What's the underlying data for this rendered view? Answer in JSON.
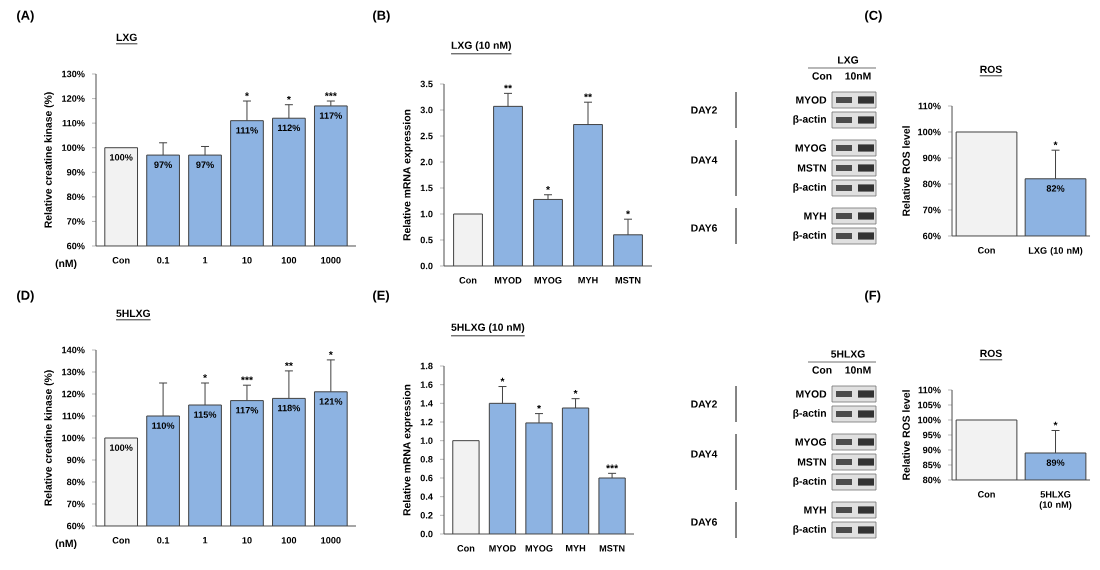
{
  "chart_data": [
    {
      "type": "bar",
      "title": "LXG",
      "ylabel": "Relative creatine kinase (%)",
      "xlabel": "(nM)",
      "categories": [
        "Con",
        "0.1",
        "1",
        "10",
        "100",
        "1000"
      ],
      "values": [
        100,
        97,
        97,
        111,
        112,
        117
      ],
      "value_labels": [
        "100%",
        "97%",
        "97%",
        "111%",
        "112%",
        "117%"
      ],
      "colors": [
        "#f2f2f2",
        "#8db3e2",
        "#8db3e2",
        "#8db3e2",
        "#8db3e2",
        "#8db3e2"
      ],
      "errors": [
        null,
        [
          97,
          102
        ],
        [
          97,
          100.5
        ],
        [
          111,
          119
        ],
        [
          112,
          117.5
        ],
        [
          117,
          119
        ]
      ],
      "ylim": [
        60,
        130
      ],
      "yticks": [
        {
          "value": 60,
          "label": "60%"
        },
        {
          "value": 70,
          "label": "70%"
        },
        {
          "value": 80,
          "label": "80%"
        },
        {
          "value": 90,
          "label": "90%"
        },
        {
          "value": 100,
          "label": "100%"
        },
        {
          "value": 110,
          "label": "110%"
        },
        {
          "value": 120,
          "label": "120%"
        },
        {
          "value": 130,
          "label": "130%"
        }
      ],
      "annotations": [
        "(A)",
        {
          "text": "*",
          "x": "10",
          "y": 119
        },
        {
          "text": "*",
          "x": "100",
          "y": 117.5
        },
        {
          "text": "***",
          "x": "1000",
          "y": 119
        }
      ]
    },
    {
      "type": "bar",
      "title": "LXG (10 nM)",
      "ylabel": "Relative mRNA expression",
      "categories": [
        "Con",
        "MYOD",
        "MYOG",
        "MYH",
        "MSTN"
      ],
      "values": [
        1.0,
        3.07,
        1.28,
        2.72,
        0.6
      ],
      "colors": [
        "#f2f2f2",
        "#8db3e2",
        "#8db3e2",
        "#8db3e2",
        "#8db3e2"
      ],
      "errors": [
        null,
        [
          3.07,
          3.32
        ],
        [
          1.28,
          1.37
        ],
        [
          2.72,
          3.15
        ],
        [
          0.6,
          0.9
        ]
      ],
      "ylim": [
        0,
        3.5
      ],
      "yticks": [
        {
          "value": 0,
          "label": "0.0"
        },
        {
          "value": 0.5,
          "label": "0.5"
        },
        {
          "value": 1,
          "label": "1.0"
        },
        {
          "value": 1.5,
          "label": "1.5"
        },
        {
          "value": 2,
          "label": "2.0"
        },
        {
          "value": 2.5,
          "label": "2.5"
        },
        {
          "value": 3,
          "label": "3.0"
        },
        {
          "value": 3.5,
          "label": "3.5"
        }
      ],
      "annotations": [
        "(B)",
        {
          "text": "**",
          "x": "MYOD",
          "y": 3.32
        },
        {
          "text": "*",
          "x": "MYOG",
          "y": 1.37
        },
        {
          "text": "**",
          "x": "MYH",
          "y": 3.15
        },
        {
          "text": "*",
          "x": "MSTN",
          "y": 0.9
        }
      ]
    },
    {
      "type": "other",
      "title": "LXG",
      "annotations": [
        "Con",
        "10nM",
        "DAY2",
        "DAY4",
        "DAY6",
        "MYOD",
        "β-actin",
        "MYOG",
        "MSTN",
        "β-actin",
        "MYH",
        "β-actin"
      ]
    },
    {
      "type": "bar",
      "title": "ROS",
      "ylabel": "Relative ROS level",
      "categories": [
        "Con",
        "LXG (10 nM)"
      ],
      "values": [
        100,
        82
      ],
      "value_labels": [
        null,
        "82%"
      ],
      "colors": [
        "#f2f2f2",
        "#8db3e2"
      ],
      "errors": [
        null,
        [
          82,
          93
        ]
      ],
      "ylim": [
        60,
        110
      ],
      "yticks": [
        {
          "value": 60,
          "label": "60%"
        },
        {
          "value": 70,
          "label": "70%"
        },
        {
          "value": 80,
          "label": "80%"
        },
        {
          "value": 90,
          "label": "90%"
        },
        {
          "value": 100,
          "label": "100%"
        },
        {
          "value": 110,
          "label": "110%"
        }
      ],
      "annotations": [
        "(C)",
        {
          "text": "*",
          "x": "LXG (10 nM)",
          "y": 93
        }
      ]
    },
    {
      "type": "bar",
      "title": "5HLXG",
      "ylabel": "Relative creatine kinase (%)",
      "xlabel": "(nM)",
      "categories": [
        "Con",
        "0.1",
        "1",
        "10",
        "100",
        "1000"
      ],
      "values": [
        100,
        110,
        115,
        117,
        118,
        121
      ],
      "value_labels": [
        "100%",
        "110%",
        "115%",
        "117%",
        "118%",
        "121%"
      ],
      "colors": [
        "#f2f2f2",
        "#8db3e2",
        "#8db3e2",
        "#8db3e2",
        "#8db3e2",
        "#8db3e2"
      ],
      "errors": [
        null,
        [
          110,
          125
        ],
        [
          115,
          125
        ],
        [
          117,
          124
        ],
        [
          118,
          130.5
        ],
        [
          121,
          135.5
        ]
      ],
      "ylim": [
        60,
        140
      ],
      "yticks": [
        {
          "value": 60,
          "label": "60%"
        },
        {
          "value": 70,
          "label": "70%"
        },
        {
          "value": 80,
          "label": "80%"
        },
        {
          "value": 90,
          "label": "90%"
        },
        {
          "value": 100,
          "label": "100%"
        },
        {
          "value": 110,
          "label": "110%"
        },
        {
          "value": 120,
          "label": "120%"
        },
        {
          "value": 130,
          "label": "130%"
        },
        {
          "value": 140,
          "label": "140%"
        }
      ],
      "annotations": [
        "(D)",
        {
          "text": "*",
          "x": "1",
          "y": 125
        },
        {
          "text": "***",
          "x": "10",
          "y": 124
        },
        {
          "text": "**",
          "x": "100",
          "y": 130.5
        },
        {
          "text": "*",
          "x": "1000",
          "y": 135.5
        }
      ]
    },
    {
      "type": "bar",
      "title": "5HLXG (10 nM)",
      "ylabel": "Relative mRNA expression",
      "categories": [
        "Con",
        "MYOD",
        "MYOG",
        "MYH",
        "MSTN"
      ],
      "values": [
        1.0,
        1.4,
        1.19,
        1.35,
        0.6
      ],
      "colors": [
        "#f2f2f2",
        "#8db3e2",
        "#8db3e2",
        "#8db3e2",
        "#8db3e2"
      ],
      "errors": [
        null,
        [
          1.4,
          1.58
        ],
        [
          1.19,
          1.29
        ],
        [
          1.35,
          1.45
        ],
        [
          0.6,
          0.65
        ]
      ],
      "ylim": [
        0,
        1.8
      ],
      "yticks": [
        {
          "value": 0,
          "label": "0.0"
        },
        {
          "value": 0.2,
          "label": "0.2"
        },
        {
          "value": 0.4,
          "label": "0.4"
        },
        {
          "value": 0.6,
          "label": "0.6"
        },
        {
          "value": 0.8,
          "label": "0.8"
        },
        {
          "value": 1,
          "label": "1.0"
        },
        {
          "value": 1.2,
          "label": "1.2"
        },
        {
          "value": 1.4,
          "label": "1.4"
        },
        {
          "value": 1.6,
          "label": "1.6"
        },
        {
          "value": 1.8,
          "label": "1.8"
        }
      ],
      "annotations": [
        "(E)",
        {
          "text": "*",
          "x": "MYOD",
          "y": 1.58
        },
        {
          "text": "*",
          "x": "MYOG",
          "y": 1.29
        },
        {
          "text": "*",
          "x": "MYH",
          "y": 1.45
        },
        {
          "text": "***",
          "x": "MSTN",
          "y": 0.65
        }
      ]
    },
    {
      "type": "other",
      "title": "5HLXG",
      "annotations": [
        "Con",
        "10nM",
        "DAY2",
        "DAY4",
        "DAY6",
        "MYOD",
        "β-actin",
        "MYOG",
        "MSTN",
        "β-actin",
        "MYH",
        "β-actin"
      ]
    },
    {
      "type": "bar",
      "title": "ROS",
      "ylabel": "Relative ROS level",
      "categories": [
        "Con",
        "5HLXG (10 nM)"
      ],
      "values": [
        100,
        89
      ],
      "value_labels": [
        null,
        "89%"
      ],
      "colors": [
        "#f2f2f2",
        "#8db3e2"
      ],
      "errors": [
        null,
        [
          89,
          96.5
        ]
      ],
      "ylim": [
        80,
        110
      ],
      "yticks": [
        {
          "value": 80,
          "label": "80%"
        },
        {
          "value": 85,
          "label": "85%"
        },
        {
          "value": 90,
          "label": "90%"
        },
        {
          "value": 95,
          "label": "95%"
        },
        {
          "value": 100,
          "label": "100%"
        },
        {
          "value": 105,
          "label": "105%"
        },
        {
          "value": 110,
          "label": "110%"
        }
      ],
      "annotations": [
        "(F)",
        {
          "text": "*",
          "x": "5HLXG (10 nM)",
          "y": 96.5
        }
      ]
    }
  ]
}
